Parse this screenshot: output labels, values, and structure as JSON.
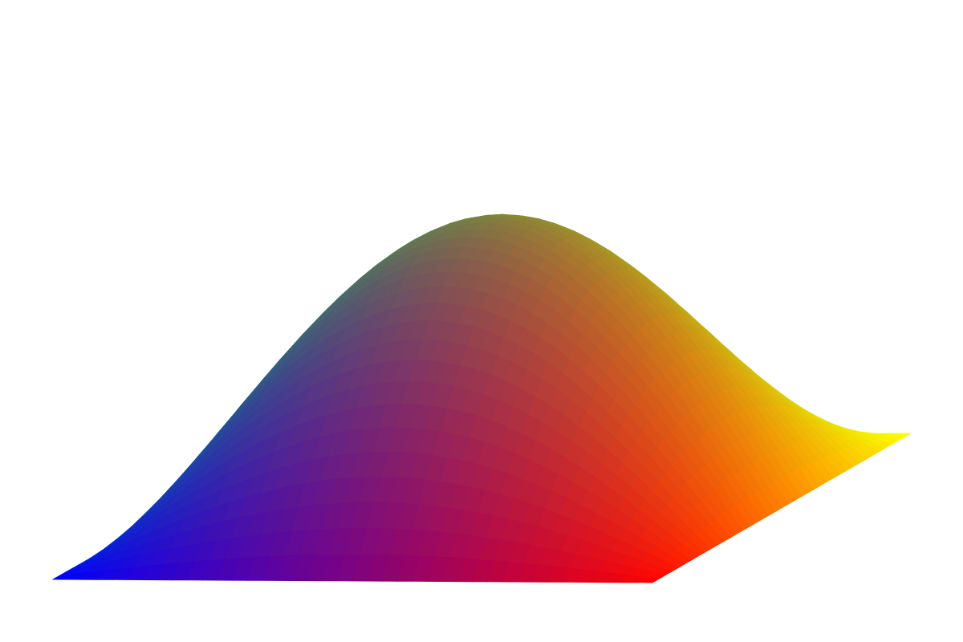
{
  "scene": {
    "background_color": "#ffffff",
    "surface_shape": "sine-dome",
    "surface_grid": {
      "u_steps": 40,
      "v_steps": 40
    },
    "corner_colors": {
      "left": "#0000ff",
      "back": "#00ff00",
      "right": "#ffff00",
      "front": "#ff0000"
    }
  }
}
